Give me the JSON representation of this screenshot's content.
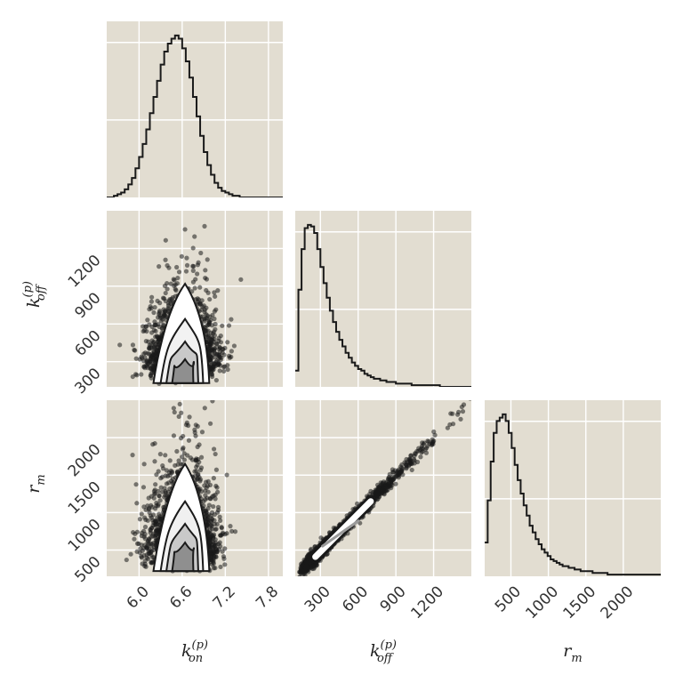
{
  "chart_data": {
    "type": "corner",
    "colors": {
      "panel_bg": "#e2ddd1",
      "grid": "#ffffff",
      "ink": "#1a1a1a"
    },
    "parameters": [
      {
        "name": "k_on^(p)",
        "label": {
          "base": "k",
          "sup": "(p)",
          "sub": "on"
        },
        "range": [
          5.55,
          8.0
        ],
        "ticks": [
          6.0,
          6.6,
          7.2,
          7.8
        ],
        "tick_labels": [
          "6.0",
          "6.6",
          "7.2",
          "7.8"
        ]
      },
      {
        "name": "k_off^(p)",
        "label": {
          "base": "k",
          "sup": "(p)",
          "sub": "off"
        },
        "range": [
          100,
          1500
        ],
        "ticks": [
          300,
          600,
          900,
          1200
        ],
        "tick_labels": [
          "300",
          "600",
          "900",
          "1200"
        ]
      },
      {
        "name": "r_m",
        "label": {
          "base": "r",
          "sup": "",
          "sub": "m"
        },
        "range": [
          150,
          2500
        ],
        "ticks": [
          500,
          1000,
          1500,
          2000
        ],
        "tick_labels": [
          "500",
          "1000",
          "1500",
          "2000"
        ]
      }
    ],
    "histograms": [
      {
        "param": 0,
        "bin_start": 5.55,
        "bin_width": 0.05,
        "counts": [
          0,
          0,
          1,
          2,
          3,
          5,
          8,
          12,
          18,
          25,
          33,
          42,
          52,
          62,
          72,
          82,
          90,
          95,
          98,
          100,
          98,
          92,
          84,
          74,
          62,
          50,
          38,
          28,
          20,
          14,
          9,
          6,
          4,
          3,
          2,
          1,
          1,
          0,
          0,
          0,
          0,
          0,
          0,
          0,
          0,
          0,
          0,
          0,
          0
        ]
      },
      {
        "param": 1,
        "bin_start": 100,
        "bin_width": 25,
        "counts": [
          10,
          60,
          85,
          98,
          100,
          99,
          95,
          85,
          74,
          64,
          55,
          47,
          40,
          34,
          29,
          25,
          21,
          18,
          15,
          13,
          11,
          10,
          8,
          7,
          6,
          5,
          5,
          4,
          4,
          3,
          3,
          3,
          2,
          2,
          2,
          2,
          2,
          1,
          1,
          1,
          1,
          1,
          1,
          1,
          1,
          1,
          0,
          0,
          0,
          0,
          0,
          0,
          0,
          0,
          0,
          0
        ]
      },
      {
        "param": 2,
        "bin_start": 150,
        "bin_width": 40,
        "counts": [
          20,
          45,
          68,
          85,
          92,
          94,
          96,
          92,
          85,
          76,
          66,
          57,
          49,
          42,
          36,
          30,
          26,
          22,
          19,
          16,
          14,
          12,
          10,
          9,
          8,
          7,
          6,
          6,
          5,
          5,
          4,
          4,
          3,
          3,
          3,
          3,
          2,
          2,
          2,
          2,
          2,
          1,
          1,
          1,
          1,
          1,
          1,
          1,
          1,
          1,
          1,
          1,
          1,
          1,
          1,
          1,
          1,
          1,
          1
        ]
      }
    ]
  }
}
